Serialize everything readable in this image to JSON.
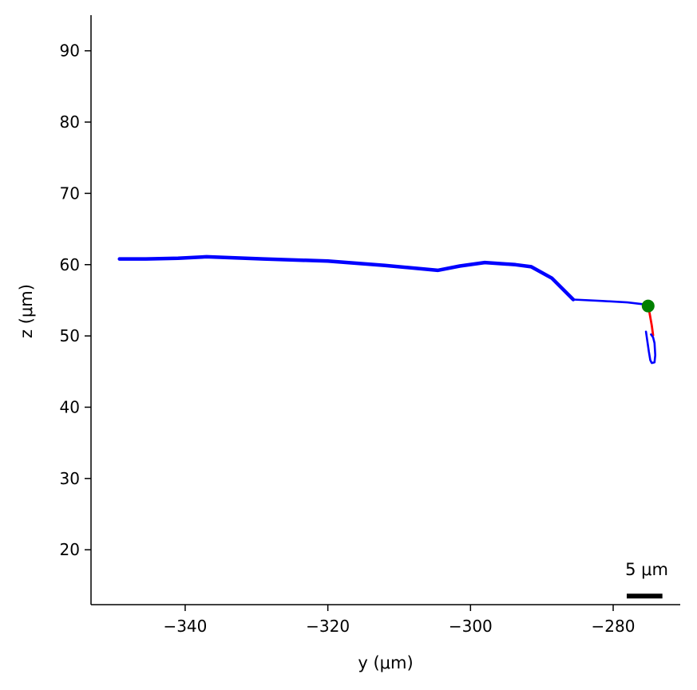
{
  "chart_data": {
    "type": "line",
    "xlabel": "y (μm)",
    "ylabel": "z (μm)",
    "xlim": [
      -353.2,
      -270.6
    ],
    "ylim": [
      12.3,
      95
    ],
    "x_ticks": [
      -340,
      -320,
      -300,
      -280
    ],
    "x_tick_labels": [
      "−340",
      "−320",
      "−300",
      "−280"
    ],
    "y_ticks": [
      20,
      30,
      40,
      50,
      60,
      70,
      80,
      90
    ],
    "y_tick_labels": [
      "20",
      "30",
      "40",
      "50",
      "60",
      "70",
      "80",
      "90"
    ],
    "grid": false,
    "series": [
      {
        "color": "#0000ff",
        "role": "thick-branch",
        "points": [
          [
            -349.2,
            60.8
          ],
          [
            -345.5,
            60.8
          ],
          [
            -341,
            60.9
          ],
          [
            -337,
            61.1
          ],
          [
            -329,
            60.8
          ],
          [
            -320,
            60.5
          ],
          [
            -312,
            59.9
          ],
          [
            -304.6,
            59.2
          ],
          [
            -301.5,
            59.8
          ],
          [
            -298,
            60.3
          ],
          [
            -293.7,
            60.0
          ],
          [
            -291.5,
            59.7
          ],
          [
            -288.6,
            58.1
          ],
          [
            -285.6,
            55.1
          ]
        ]
      },
      {
        "color": "#0000ff",
        "role": "thin-branch",
        "points": [
          [
            -285.6,
            55.1
          ],
          [
            -281.5,
            54.9
          ],
          [
            -278,
            54.7
          ],
          [
            -275.4,
            54.4
          ],
          [
            -275.1,
            54.2
          ]
        ]
      },
      {
        "color": "#ff0000",
        "role": "red-branch",
        "points": [
          [
            -275.1,
            54.2
          ],
          [
            -274.9,
            53.2
          ],
          [
            -274.6,
            51.5
          ],
          [
            -274.4,
            50.1
          ]
        ]
      },
      {
        "color": "#0000ff",
        "role": "hook-branch",
        "points": [
          [
            -275.4,
            50.6
          ],
          [
            -275.2,
            49.2
          ],
          [
            -275.0,
            47.8
          ],
          [
            -274.8,
            46.6
          ],
          [
            -274.6,
            46.2
          ],
          [
            -274.2,
            46.3
          ],
          [
            -274.1,
            47.3
          ],
          [
            -274.2,
            49.0
          ],
          [
            -274.4,
            49.8
          ],
          [
            -274.7,
            50.2
          ]
        ]
      }
    ],
    "soma": {
      "x": -275.1,
      "y": 54.2,
      "color": "#008000"
    },
    "scalebar": {
      "label": "5 μm",
      "length": 5,
      "x_start": -278.1,
      "y": 13.5
    }
  }
}
